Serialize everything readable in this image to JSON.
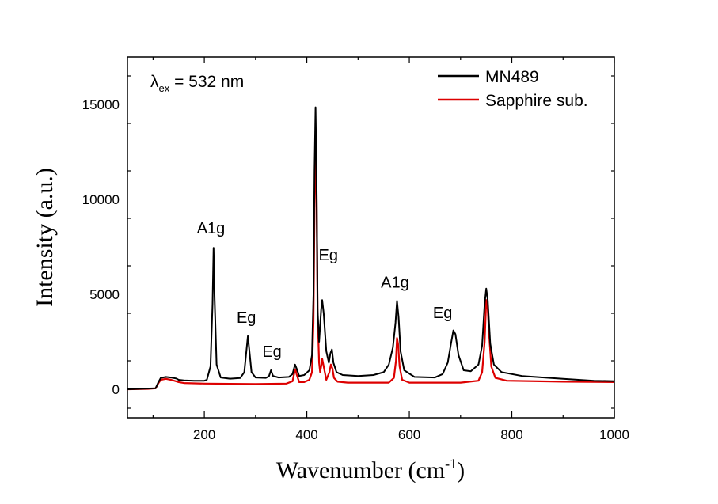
{
  "chart_data": {
    "type": "line",
    "title": "",
    "xlabel_main": "Wavenumber (cm",
    "xlabel_sup": "-1",
    "xlabel_close": ")",
    "ylabel": "Intensity (a.u.)",
    "xlim": [
      50,
      1000
    ],
    "ylim": [
      -1500,
      17500
    ],
    "xticks": [
      200,
      400,
      600,
      800,
      1000
    ],
    "xtick_labels": [
      "200",
      "400",
      "600",
      "800",
      "1000"
    ],
    "yticks": [
      0,
      5000,
      10000,
      15000
    ],
    "ytick_labels": [
      "0",
      "5000",
      "10000",
      "15000"
    ],
    "grid": false,
    "legend_position": "top-right",
    "excitation_label": {
      "symbol": "λ",
      "subscript": "ex",
      "text": " = 532 nm"
    },
    "series": [
      {
        "name": "MN489",
        "color": "#000000",
        "points": [
          [
            50,
            0
          ],
          [
            105,
            50
          ],
          [
            110,
            350
          ],
          [
            115,
            600
          ],
          [
            125,
            650
          ],
          [
            135,
            620
          ],
          [
            145,
            570
          ],
          [
            150,
            500
          ],
          [
            160,
            470
          ],
          [
            180,
            450
          ],
          [
            200,
            450
          ],
          [
            205,
            500
          ],
          [
            212,
            1200
          ],
          [
            216,
            4500
          ],
          [
            218,
            7450
          ],
          [
            220,
            4800
          ],
          [
            224,
            1300
          ],
          [
            232,
            620
          ],
          [
            250,
            560
          ],
          [
            270,
            590
          ],
          [
            278,
            900
          ],
          [
            282,
            2000
          ],
          [
            285,
            2800
          ],
          [
            288,
            2000
          ],
          [
            292,
            900
          ],
          [
            300,
            620
          ],
          [
            320,
            600
          ],
          [
            326,
            680
          ],
          [
            330,
            1000
          ],
          [
            334,
            700
          ],
          [
            345,
            620
          ],
          [
            365,
            650
          ],
          [
            372,
            800
          ],
          [
            377,
            1300
          ],
          [
            380,
            1100
          ],
          [
            385,
            700
          ],
          [
            395,
            750
          ],
          [
            405,
            1000
          ],
          [
            410,
            1800
          ],
          [
            413,
            5000
          ],
          [
            415,
            11500
          ],
          [
            417,
            14850
          ],
          [
            419,
            11000
          ],
          [
            421,
            4200
          ],
          [
            424,
            2500
          ],
          [
            428,
            4200
          ],
          [
            430,
            4700
          ],
          [
            433,
            4000
          ],
          [
            438,
            2000
          ],
          [
            443,
            1400
          ],
          [
            446,
            1900
          ],
          [
            449,
            2100
          ],
          [
            452,
            1400
          ],
          [
            458,
            900
          ],
          [
            470,
            750
          ],
          [
            500,
            700
          ],
          [
            530,
            750
          ],
          [
            550,
            900
          ],
          [
            560,
            1300
          ],
          [
            568,
            2200
          ],
          [
            573,
            3500
          ],
          [
            576,
            4650
          ],
          [
            579,
            3800
          ],
          [
            583,
            2000
          ],
          [
            590,
            1000
          ],
          [
            610,
            650
          ],
          [
            650,
            620
          ],
          [
            665,
            800
          ],
          [
            675,
            1400
          ],
          [
            682,
            2500
          ],
          [
            686,
            3100
          ],
          [
            690,
            2900
          ],
          [
            696,
            1800
          ],
          [
            706,
            1000
          ],
          [
            720,
            950
          ],
          [
            735,
            1300
          ],
          [
            742,
            2300
          ],
          [
            747,
            4500
          ],
          [
            750,
            5300
          ],
          [
            753,
            4700
          ],
          [
            758,
            2400
          ],
          [
            765,
            1300
          ],
          [
            780,
            900
          ],
          [
            820,
            700
          ],
          [
            900,
            550
          ],
          [
            960,
            450
          ],
          [
            1000,
            430
          ]
        ]
      },
      {
        "name": "Sapphire sub.",
        "color": "#dd0000",
        "points": [
          [
            50,
            0
          ],
          [
            90,
            20
          ],
          [
            105,
            50
          ],
          [
            110,
            300
          ],
          [
            115,
            500
          ],
          [
            125,
            550
          ],
          [
            135,
            500
          ],
          [
            145,
            420
          ],
          [
            150,
            380
          ],
          [
            160,
            330
          ],
          [
            200,
            300
          ],
          [
            300,
            280
          ],
          [
            360,
            300
          ],
          [
            372,
            420
          ],
          [
            376,
            900
          ],
          [
            378,
            1050
          ],
          [
            380,
            800
          ],
          [
            385,
            380
          ],
          [
            395,
            380
          ],
          [
            405,
            500
          ],
          [
            410,
            900
          ],
          [
            413,
            3500
          ],
          [
            415,
            9500
          ],
          [
            417,
            12300
          ],
          [
            419,
            10500
          ],
          [
            421,
            4000
          ],
          [
            424,
            1400
          ],
          [
            426,
            900
          ],
          [
            428,
            1200
          ],
          [
            430,
            1600
          ],
          [
            433,
            1200
          ],
          [
            438,
            500
          ],
          [
            444,
            900
          ],
          [
            447,
            1300
          ],
          [
            450,
            1100
          ],
          [
            453,
            600
          ],
          [
            460,
            400
          ],
          [
            480,
            350
          ],
          [
            560,
            350
          ],
          [
            570,
            600
          ],
          [
            574,
            1500
          ],
          [
            576,
            2700
          ],
          [
            578,
            2400
          ],
          [
            581,
            1200
          ],
          [
            586,
            500
          ],
          [
            600,
            350
          ],
          [
            700,
            350
          ],
          [
            735,
            450
          ],
          [
            742,
            900
          ],
          [
            747,
            2500
          ],
          [
            750,
            4700
          ],
          [
            753,
            4200
          ],
          [
            756,
            2800
          ],
          [
            760,
            1200
          ],
          [
            768,
            600
          ],
          [
            790,
            450
          ],
          [
            900,
            400
          ],
          [
            1000,
            380
          ]
        ]
      }
    ],
    "annotations": [
      {
        "text": "A1g",
        "x": 213,
        "y": 8200
      },
      {
        "text": "Eg",
        "x": 282,
        "y": 3500
      },
      {
        "text": "Eg",
        "x": 332,
        "y": 1700
      },
      {
        "text": "Eg",
        "x": 442,
        "y": 6800
      },
      {
        "text": "A1g",
        "x": 572,
        "y": 5350
      },
      {
        "text": "Eg",
        "x": 665,
        "y": 3750
      }
    ]
  }
}
